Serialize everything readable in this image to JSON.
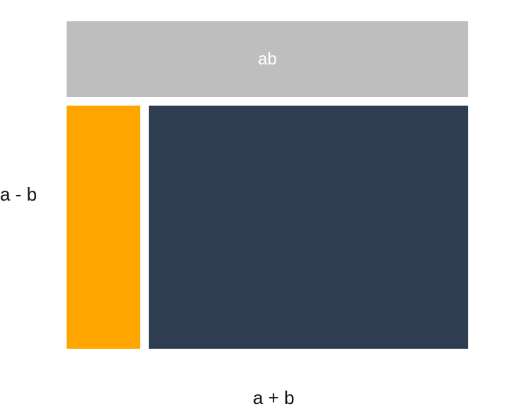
{
  "diagram": {
    "top_box_label": "ab",
    "left_side_label": "a - b",
    "bottom_label": "a + b"
  },
  "colors": {
    "top_box": "#bebebe",
    "left_box": "#ffa500",
    "right_box": "#2e3e50"
  }
}
